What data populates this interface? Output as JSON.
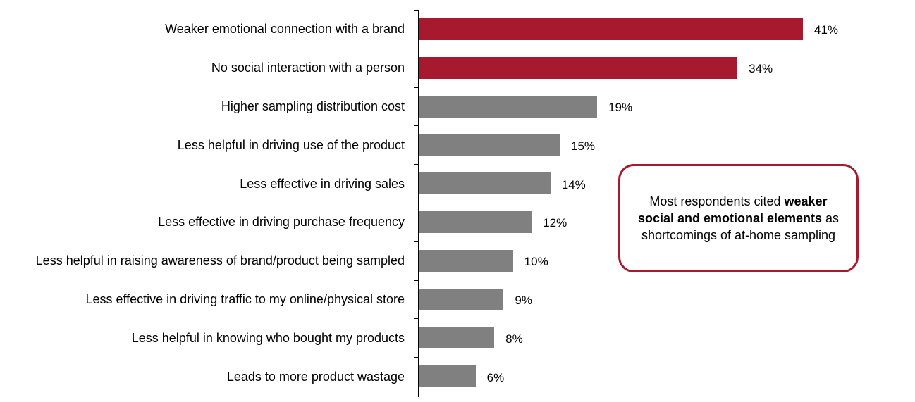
{
  "chart_data": {
    "type": "bar",
    "orientation": "horizontal",
    "categories": [
      "Weaker emotional connection with a brand",
      "No social interaction with a person",
      "Higher sampling distribution cost",
      "Less helpful in driving use of the product",
      "Less effective in driving sales",
      "Less effective in driving purchase frequency",
      "Less helpful in raising awareness of brand/product being sampled",
      "Less effective in driving traffic to my online/physical store",
      "Less helpful in knowing who bought my products",
      "Leads to more product wastage"
    ],
    "values": [
      41,
      34,
      19,
      15,
      14,
      12,
      10,
      9,
      8,
      6
    ],
    "value_labels": [
      "41%",
      "34%",
      "19%",
      "15%",
      "14%",
      "12%",
      "10%",
      "9%",
      "8%",
      "6%"
    ],
    "colors": [
      "#a6192e",
      "#a6192e",
      "#808080",
      "#808080",
      "#808080",
      "#808080",
      "#808080",
      "#808080",
      "#808080",
      "#808080"
    ],
    "annotation": [
      "Most respondents cited",
      "weaker social and emotional elements",
      "as shortcomings of at-home sampling"
    ]
  }
}
